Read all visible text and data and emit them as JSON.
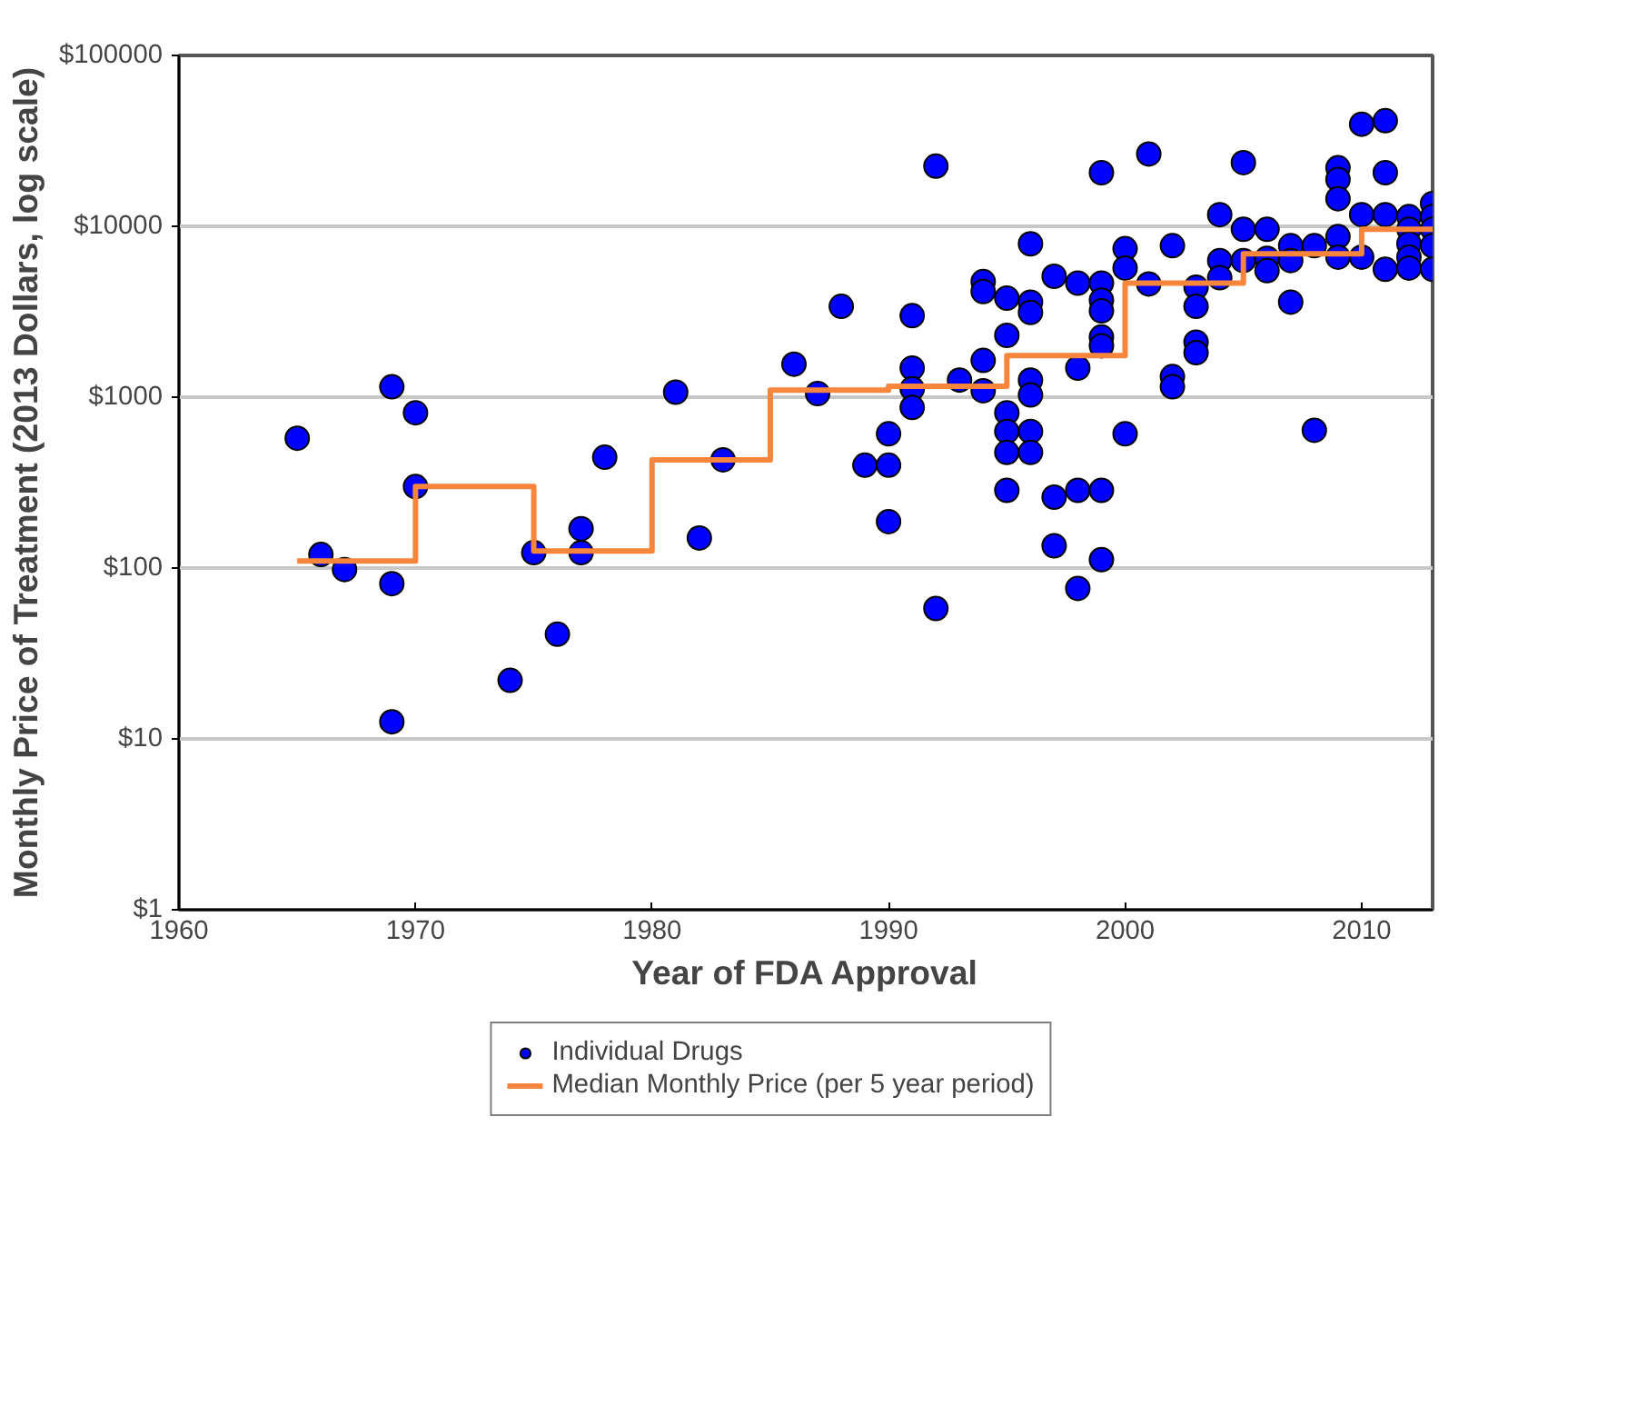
{
  "chart_data": {
    "type": "scatter",
    "xlabel": "Year of FDA Approval",
    "ylabel": "Monthly Price of Treatment (2013 Dollars, log scale)",
    "xlim": [
      1960,
      2013
    ],
    "xticks": [
      1960,
      1970,
      1980,
      1990,
      2000,
      2010
    ],
    "ylim": [
      1,
      100000
    ],
    "yticks": [
      {
        "value": 1,
        "label": "$1"
      },
      {
        "value": 10,
        "label": "$10"
      },
      {
        "value": 100,
        "label": "$100"
      },
      {
        "value": 1000,
        "label": "$1000"
      },
      {
        "value": 10000,
        "label": "$10000"
      },
      {
        "value": 100000,
        "label": "$100000"
      }
    ],
    "log": "y",
    "grid": "y",
    "legend": "bottom",
    "series": [
      {
        "name": "Individual Drugs",
        "marker": "circle",
        "color": "#0000ff",
        "x": [
          1965,
          1966,
          1967,
          1969,
          1969,
          1969,
          1970,
          1970,
          1974,
          1975,
          1976,
          1977,
          1977,
          1978,
          1981,
          1982,
          1983,
          1986,
          1987,
          1988,
          1989,
          1990,
          1990,
          1990,
          1991,
          1991,
          1991,
          1991,
          1992,
          1992,
          1993,
          1994,
          1994,
          1994,
          1994,
          1995,
          1995,
          1995,
          1995,
          1995,
          1995,
          1996,
          1996,
          1996,
          1996,
          1996,
          1996,
          1996,
          1997,
          1997,
          1997,
          1998,
          1998,
          1998,
          1998,
          1999,
          1999,
          1999,
          1999,
          1999,
          1999,
          1999,
          1999,
          2000,
          2000,
          2000,
          2001,
          2001,
          2002,
          2002,
          2002,
          2003,
          2003,
          2003,
          2003,
          2004,
          2004,
          2004,
          2005,
          2005,
          2005,
          2006,
          2006,
          2006,
          2007,
          2007,
          2007,
          2008,
          2008,
          2009,
          2009,
          2009,
          2009,
          2009,
          2010,
          2010,
          2010,
          2011,
          2011,
          2011,
          2011,
          2012,
          2012,
          2012,
          2012,
          2012,
          2013,
          2013,
          2013,
          2013,
          2013
        ],
        "values": [
          575,
          120,
          98,
          1150,
          81,
          12.6,
          810,
          300,
          22,
          123,
          41,
          170,
          123,
          445,
          1070,
          150,
          430,
          1560,
          1050,
          3400,
          400,
          610,
          400,
          187,
          3000,
          1480,
          1120,
          870,
          22500,
          58,
          1260,
          4750,
          4150,
          1640,
          1090,
          3800,
          2300,
          810,
          630,
          475,
          285,
          7900,
          3600,
          3130,
          1260,
          1030,
          630,
          475,
          5100,
          260,
          135,
          4650,
          1480,
          285,
          76,
          20600,
          4650,
          3700,
          3200,
          2250,
          2000,
          285,
          112,
          7400,
          5700,
          610,
          26500,
          4600,
          7700,
          1320,
          1150,
          4400,
          3400,
          2100,
          1820,
          11700,
          6300,
          5000,
          23600,
          9600,
          6300,
          9600,
          6500,
          5500,
          7700,
          6300,
          3600,
          7700,
          640,
          22000,
          18800,
          14500,
          8700,
          6600,
          39600,
          11700,
          6600,
          41500,
          20600,
          11700,
          5600,
          11400,
          9600,
          7900,
          6600,
          5700,
          13600,
          11400,
          9600,
          7700,
          5600
        ]
      },
      {
        "name": "Median Monthly Price (per 5 year period)",
        "type": "step",
        "color": "#f7853b",
        "x": [
          1965,
          1970,
          1975,
          1980,
          1985,
          1990,
          1995,
          2000,
          2005,
          2010,
          2013
        ],
        "values": [
          110,
          300,
          126,
          430,
          1100,
          1160,
          1750,
          4650,
          6900,
          9600,
          9600
        ]
      }
    ]
  }
}
